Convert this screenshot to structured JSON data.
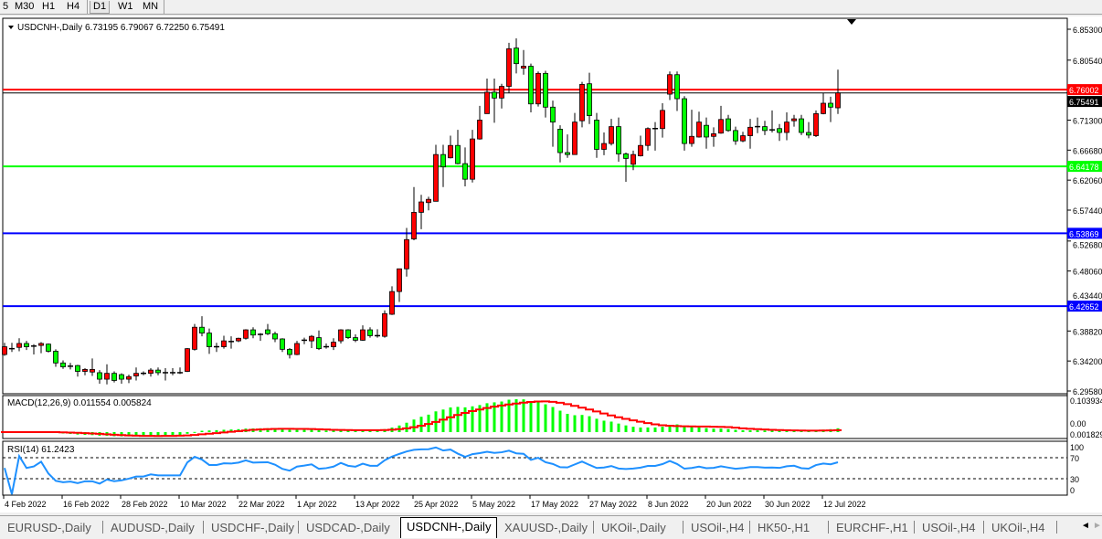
{
  "timeframes": {
    "items": [
      "5",
      "M30",
      "H1",
      "H4",
      "D1",
      "W1",
      "MN"
    ],
    "active": "D1"
  },
  "chart": {
    "symbol_title": "USDCNH-,Daily",
    "ohlc_readout": "6.73195 6.79067 6.72250 6.75491",
    "colors": {
      "bull": "#ff0000",
      "bear": "#00ff00",
      "axis": "#000000",
      "macd_hist": "#00ff00",
      "macd_signal": "#ff0000",
      "rsi": "#1e90ff"
    },
    "price_axis_labels": [
      "6.85300",
      "6.80540",
      "6.71300",
      "6.66680",
      "6.62060",
      "6.57440",
      "6.52680",
      "6.48060",
      "6.43440",
      "6.38820",
      "6.34200",
      "6.29580"
    ],
    "price_axis_values": [
      6.853,
      6.8054,
      6.713,
      6.6668,
      6.6206,
      6.5744,
      6.5268,
      6.4806,
      6.4344,
      6.3882,
      6.342,
      6.2958
    ],
    "horizontal_lines": [
      {
        "price": 6.75491,
        "label": "6.75491",
        "color": "#000000"
      },
      {
        "price": 6.76002,
        "label": "6.76002",
        "color": "#ff0000"
      },
      {
        "price": 6.64178,
        "label": "6.64178",
        "color": "#00ff00"
      },
      {
        "price": 6.53869,
        "label": "6.53869",
        "color": "#0000ff"
      },
      {
        "price": 6.42652,
        "label": "6.42652",
        "color": "#0000ff"
      }
    ],
    "date_labels": [
      "4 Feb 2022",
      "16 Feb 2022",
      "28 Feb 2022",
      "10 Mar 2022",
      "22 Mar 2022",
      "1 Apr 2022",
      "13 Apr 2022",
      "25 Apr 2022",
      "5 May 2022",
      "17 May 2022",
      "27 May 2022",
      "8 Jun 2022",
      "20 Jun 2022",
      "30 Jun 2022",
      "12 Jul 2022"
    ]
  },
  "macd": {
    "title": "MACD(12,26,9) 0.011554 0.005824",
    "axis_top": "0.103934",
    "axis_zero": "0.00",
    "axis_bottom": "0.001829"
  },
  "rsi": {
    "title": "RSI(14) 61.2423",
    "levels": [
      "100",
      "70",
      "30",
      "0"
    ]
  },
  "chart_data": {
    "type": "candlestick",
    "title": "USDCNH-,Daily",
    "ylim": [
      6.2958,
      6.853
    ],
    "columns": [
      "open",
      "high",
      "low",
      "close"
    ],
    "ohlc": [
      [
        6.352,
        6.37,
        6.35,
        6.364
      ],
      [
        6.361,
        6.37,
        6.356,
        6.361
      ],
      [
        6.363,
        6.377,
        6.357,
        6.369
      ],
      [
        6.369,
        6.373,
        6.359,
        6.364
      ],
      [
        6.365,
        6.368,
        6.352,
        6.365
      ],
      [
        6.366,
        6.371,
        6.354,
        6.369
      ],
      [
        6.368,
        6.369,
        6.355,
        6.357
      ],
      [
        6.357,
        6.36,
        6.333,
        6.339
      ],
      [
        6.339,
        6.343,
        6.33,
        6.333
      ],
      [
        6.334,
        6.339,
        6.329,
        6.334
      ],
      [
        6.335,
        6.336,
        6.318,
        6.326
      ],
      [
        6.326,
        6.331,
        6.32,
        6.329
      ],
      [
        6.325,
        6.346,
        6.319,
        6.329
      ],
      [
        6.324,
        6.328,
        6.307,
        6.314
      ],
      [
        6.314,
        6.337,
        6.306,
        6.323
      ],
      [
        6.323,
        6.326,
        6.309,
        6.312
      ],
      [
        6.321,
        6.323,
        6.307,
        6.314
      ],
      [
        6.314,
        6.321,
        6.308,
        6.318
      ],
      [
        6.319,
        6.332,
        6.312,
        6.323
      ],
      [
        6.323,
        6.326,
        6.32,
        6.323
      ],
      [
        6.323,
        6.331,
        6.318,
        6.328
      ],
      [
        6.328,
        6.332,
        6.32,
        6.324
      ],
      [
        6.324,
        6.331,
        6.312,
        6.324
      ],
      [
        6.324,
        6.331,
        6.32,
        6.324
      ],
      [
        6.324,
        6.332,
        6.322,
        6.324
      ],
      [
        6.326,
        6.362,
        6.325,
        6.361
      ],
      [
        6.36,
        6.399,
        6.358,
        6.394
      ],
      [
        6.394,
        6.411,
        6.38,
        6.385
      ],
      [
        6.385,
        6.392,
        6.353,
        6.364
      ],
      [
        6.364,
        6.37,
        6.356,
        6.364
      ],
      [
        6.364,
        6.381,
        6.361,
        6.373
      ],
      [
        6.372,
        6.38,
        6.361,
        6.372
      ],
      [
        6.373,
        6.378,
        6.371,
        6.377
      ],
      [
        6.377,
        6.391,
        6.375,
        6.39
      ],
      [
        6.39,
        6.394,
        6.377,
        6.382
      ],
      [
        6.383,
        6.385,
        6.373,
        6.383
      ],
      [
        6.39,
        6.399,
        6.382,
        6.384
      ],
      [
        6.384,
        6.387,
        6.371,
        6.376
      ],
      [
        6.376,
        6.377,
        6.356,
        6.36
      ],
      [
        6.36,
        6.362,
        6.346,
        6.352
      ],
      [
        6.352,
        6.373,
        6.351,
        6.369
      ],
      [
        6.374,
        6.378,
        6.368,
        6.374
      ],
      [
        6.373,
        6.382,
        6.362,
        6.38
      ],
      [
        6.378,
        6.389,
        6.359,
        6.361
      ],
      [
        6.364,
        6.369,
        6.361,
        6.364
      ],
      [
        6.364,
        6.377,
        6.359,
        6.371
      ],
      [
        6.373,
        6.391,
        6.369,
        6.39
      ],
      [
        6.39,
        6.391,
        6.376,
        6.378
      ],
      [
        6.378,
        6.383,
        6.371,
        6.374
      ],
      [
        6.374,
        6.397,
        6.373,
        6.39
      ],
      [
        6.39,
        6.394,
        6.378,
        6.381
      ],
      [
        6.381,
        6.391,
        6.378,
        6.381
      ],
      [
        6.38,
        6.42,
        6.378,
        6.415
      ],
      [
        6.414,
        6.457,
        6.413,
        6.449
      ],
      [
        6.449,
        6.484,
        6.433,
        6.484
      ],
      [
        6.484,
        6.547,
        6.472,
        6.529
      ],
      [
        6.53,
        6.61,
        6.528,
        6.571
      ],
      [
        6.571,
        6.598,
        6.545,
        6.587
      ],
      [
        6.586,
        6.595,
        6.574,
        6.591
      ],
      [
        6.588,
        6.675,
        6.588,
        6.66
      ],
      [
        6.66,
        6.675,
        6.61,
        6.641
      ],
      [
        6.655,
        6.689,
        6.654,
        6.674
      ],
      [
        6.674,
        6.698,
        6.645,
        6.646
      ],
      [
        6.646,
        6.671,
        6.611,
        6.622
      ],
      [
        6.622,
        6.698,
        6.617,
        6.684
      ],
      [
        6.684,
        6.735,
        6.683,
        6.713
      ],
      [
        6.723,
        6.777,
        6.723,
        6.756
      ],
      [
        6.756,
        6.777,
        6.709,
        6.747
      ],
      [
        6.747,
        6.769,
        6.731,
        6.765
      ],
      [
        6.765,
        6.832,
        6.755,
        6.823
      ],
      [
        6.824,
        6.839,
        6.785,
        6.8
      ],
      [
        6.793,
        6.821,
        6.783,
        6.796
      ],
      [
        6.796,
        6.8,
        6.725,
        6.738
      ],
      [
        6.738,
        6.788,
        6.734,
        6.785
      ],
      [
        6.785,
        6.789,
        6.717,
        6.733
      ],
      [
        6.733,
        6.743,
        6.672,
        6.71
      ],
      [
        6.699,
        6.705,
        6.648,
        6.663
      ],
      [
        6.663,
        6.691,
        6.655,
        6.66
      ],
      [
        6.66,
        6.724,
        6.66,
        6.71
      ],
      [
        6.712,
        6.772,
        6.702,
        6.768
      ],
      [
        6.769,
        6.786,
        6.707,
        6.72
      ],
      [
        6.713,
        6.724,
        6.655,
        6.668
      ],
      [
        6.668,
        6.694,
        6.659,
        6.677
      ],
      [
        6.677,
        6.715,
        6.674,
        6.703
      ],
      [
        6.703,
        6.717,
        6.649,
        6.661
      ],
      [
        6.661,
        6.663,
        6.618,
        6.654
      ],
      [
        6.645,
        6.666,
        6.636,
        6.66
      ],
      [
        6.658,
        6.689,
        6.657,
        6.674
      ],
      [
        6.674,
        6.702,
        6.666,
        6.7
      ],
      [
        6.7,
        6.71,
        6.666,
        6.7
      ],
      [
        6.7,
        6.739,
        6.686,
        6.728
      ],
      [
        6.753,
        6.788,
        6.744,
        6.783
      ],
      [
        6.783,
        6.788,
        6.727,
        6.746
      ],
      [
        6.746,
        6.75,
        6.666,
        6.677
      ],
      [
        6.677,
        6.729,
        6.672,
        6.688
      ],
      [
        6.687,
        6.726,
        6.686,
        6.71
      ],
      [
        6.705,
        6.717,
        6.669,
        6.687
      ],
      [
        6.688,
        6.702,
        6.672,
        6.692
      ],
      [
        6.693,
        6.735,
        6.692,
        6.714
      ],
      [
        6.715,
        6.721,
        6.695,
        6.697
      ],
      [
        6.697,
        6.703,
        6.675,
        6.681
      ],
      [
        6.681,
        6.695,
        6.679,
        6.689
      ],
      [
        6.689,
        6.715,
        6.669,
        6.702
      ],
      [
        6.703,
        6.717,
        6.693,
        6.703
      ],
      [
        6.703,
        6.712,
        6.69,
        6.697
      ],
      [
        6.698,
        6.728,
        6.694,
        6.698
      ],
      [
        6.7,
        6.707,
        6.681,
        6.694
      ],
      [
        6.694,
        6.725,
        6.682,
        6.71
      ],
      [
        6.712,
        6.721,
        6.703,
        6.715
      ],
      [
        6.715,
        6.721,
        6.69,
        6.694
      ],
      [
        6.694,
        6.71,
        6.685,
        6.69
      ],
      [
        6.689,
        6.728,
        6.687,
        6.723
      ],
      [
        6.723,
        6.755,
        6.722,
        6.739
      ],
      [
        6.739,
        6.749,
        6.71,
        6.733
      ],
      [
        6.73195,
        6.79067,
        6.7225,
        6.75491
      ]
    ]
  },
  "tabs": {
    "items": [
      "EURUSD-,Daily",
      "AUDUSD-,Daily",
      "USDCHF-,Daily",
      "USDCAD-,Daily",
      "USDCNH-,Daily",
      "XAUUSD-,Daily",
      "UKOil-,Daily",
      "USOil-,H4",
      "HK50-,H1",
      "EURCHF-,H1",
      "USOil-,H4",
      "UKOil-,H4"
    ],
    "active_index": 4,
    "scroll_left": "◄",
    "scroll_right": "►"
  }
}
